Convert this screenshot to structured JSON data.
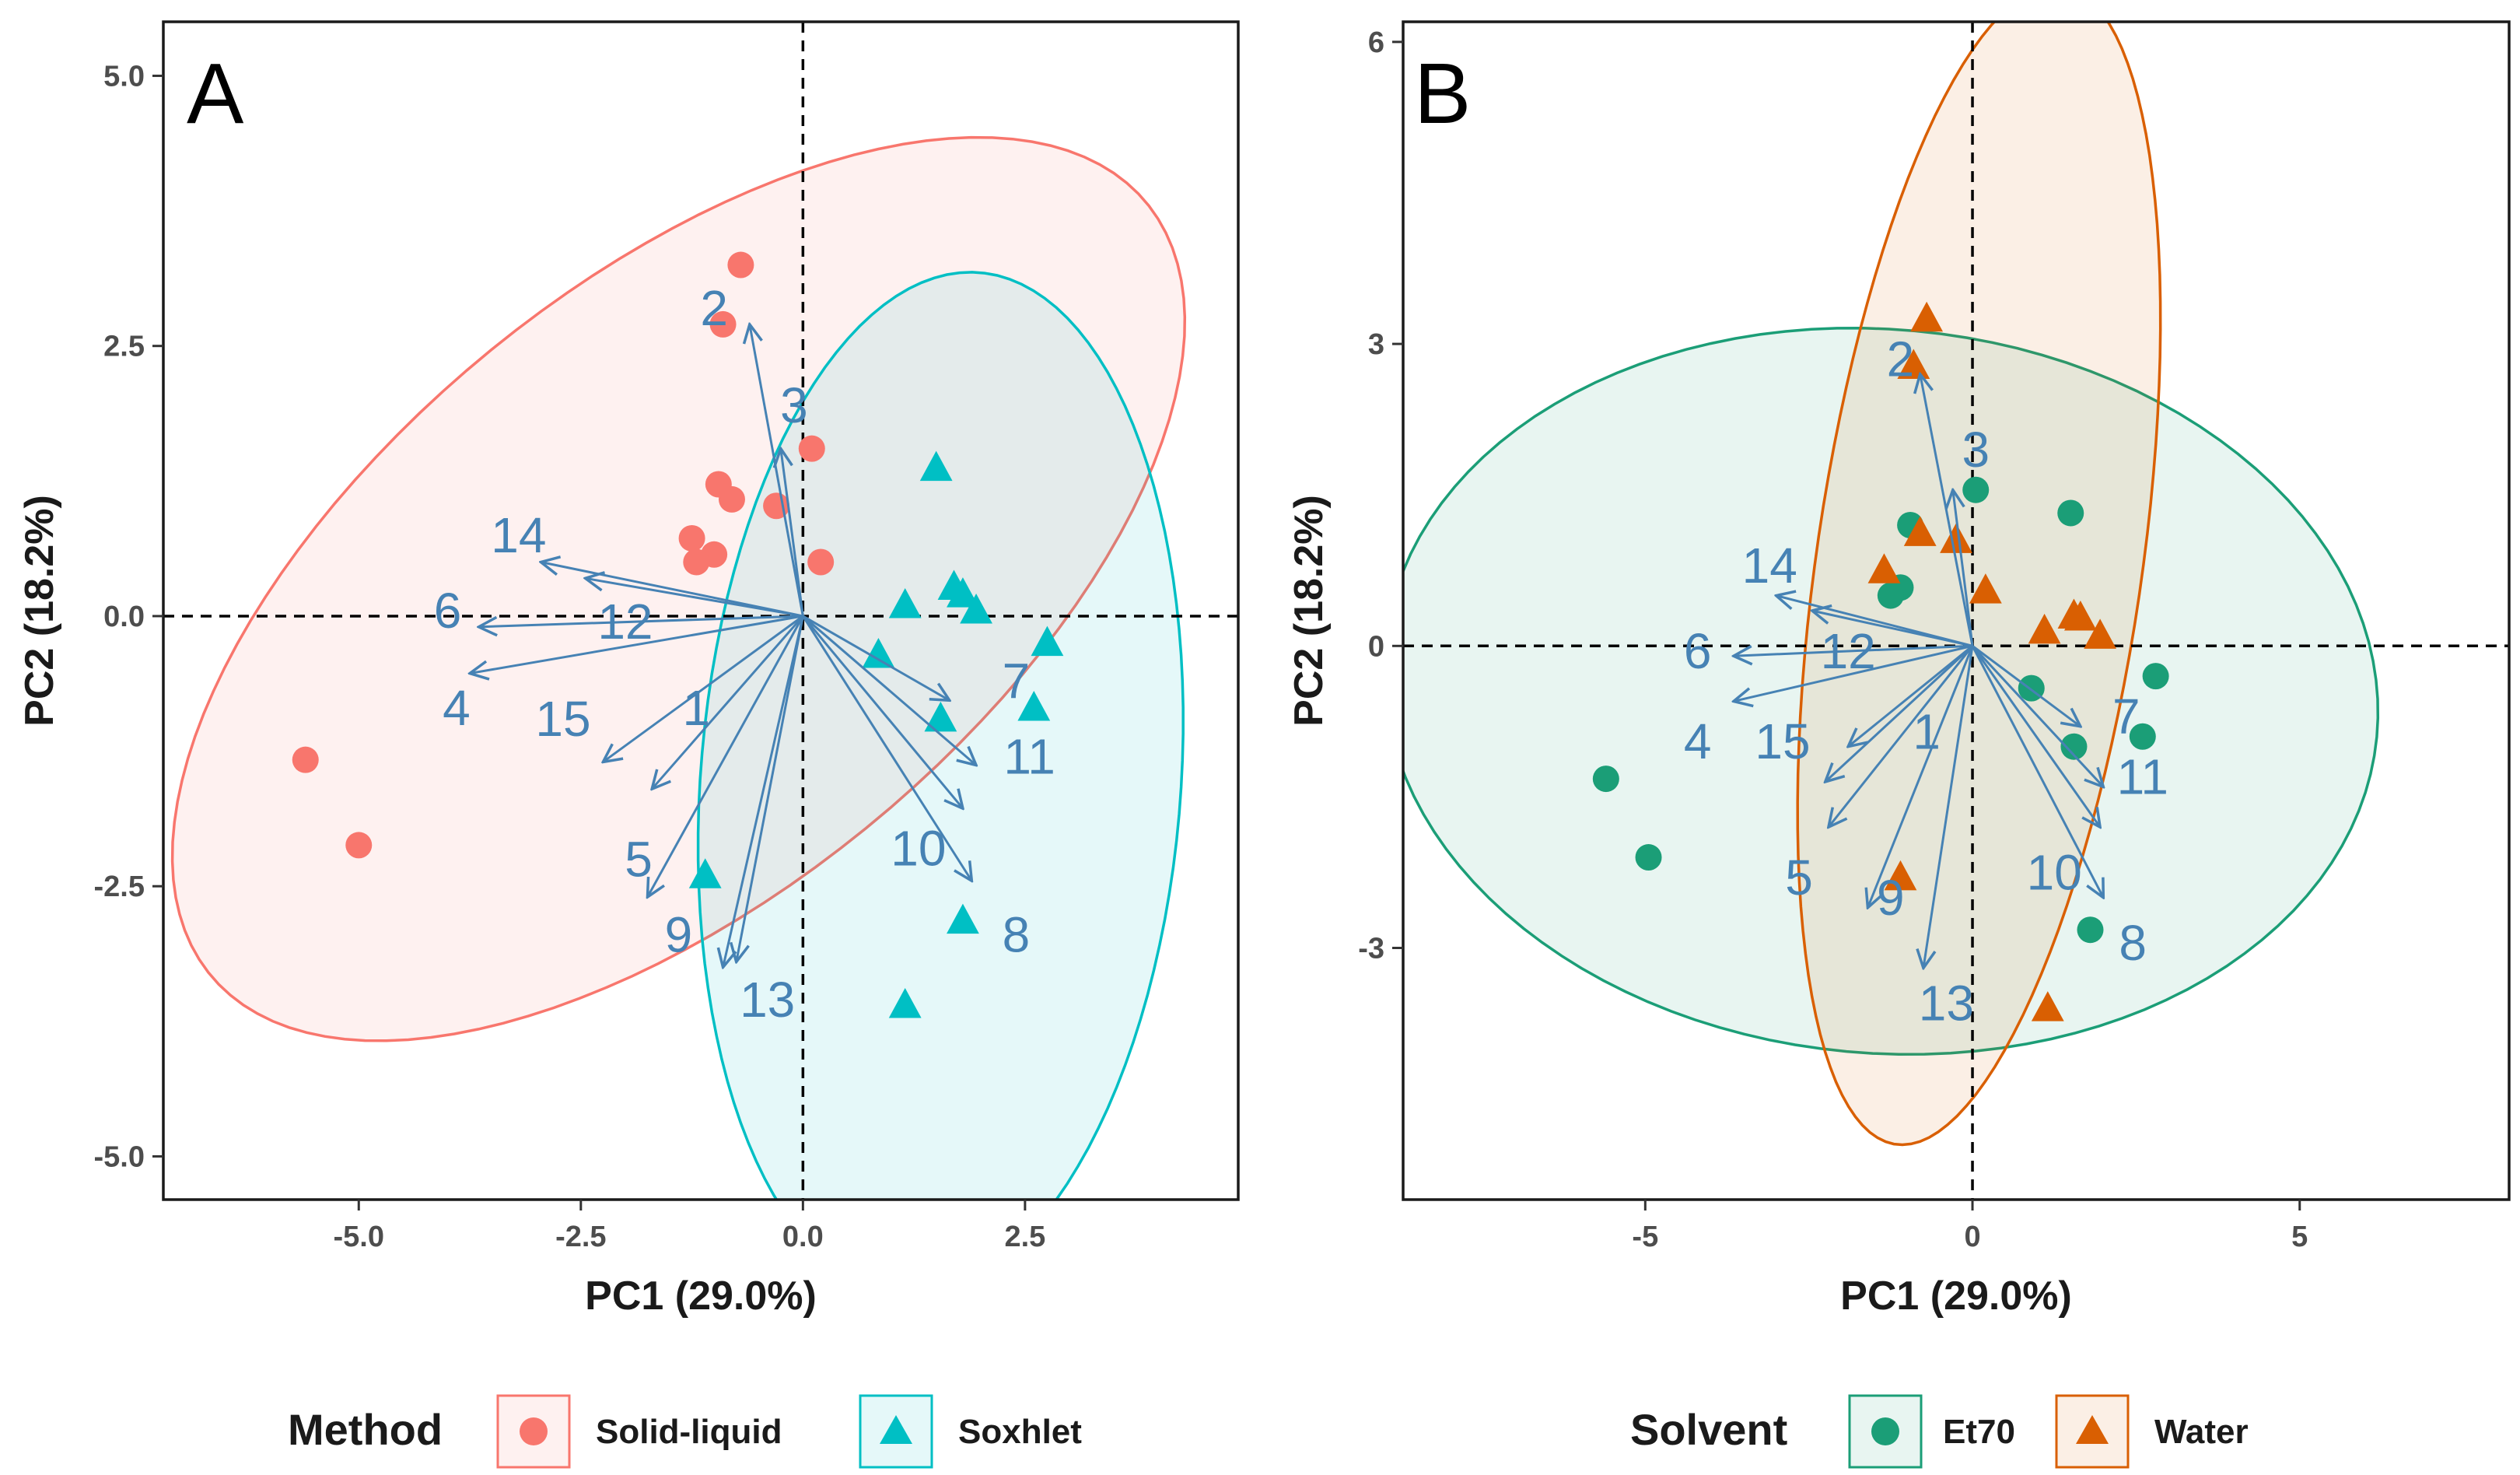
{
  "chart_data": [
    {
      "type": "scatter",
      "subtype": "pca-biplot",
      "panel_label": "A",
      "xlabel": "PC1 (29.0%)",
      "ylabel": "PC2 (18.2%)",
      "xlim": [
        -7.2,
        4.9
      ],
      "ylim": [
        -5.4,
        5.5
      ],
      "x_ticks": [
        -5.0,
        -2.5,
        0.0,
        2.5
      ],
      "x_tick_labels": [
        "-5.0",
        "-2.5",
        "0.0",
        "2.5"
      ],
      "y_ticks": [
        -5.0,
        -2.5,
        0.0,
        2.5,
        5.0
      ],
      "y_tick_labels": [
        "-5.0",
        "-2.5",
        "0.0",
        "2.5",
        "5.0"
      ],
      "reference_lines": {
        "x": 0,
        "y": 0,
        "style": "dashed"
      },
      "legend": {
        "title": "Method",
        "position": "bottom",
        "entries": [
          {
            "label": "Solid-liquid",
            "shape": "circle",
            "color": "#F8766D"
          },
          {
            "label": "Soxhlet",
            "shape": "triangle",
            "color": "#00BFC4"
          }
        ]
      },
      "series": [
        {
          "name": "Solid-liquid",
          "shape": "circle",
          "color": "#F8766D",
          "points": [
            [
              -0.7,
              3.25
            ],
            [
              -0.9,
              2.7
            ],
            [
              -0.95,
              1.22
            ],
            [
              -0.8,
              1.08
            ],
            [
              -1.25,
              0.72
            ],
            [
              -1.0,
              0.57
            ],
            [
              -1.2,
              0.5
            ],
            [
              -0.3,
              1.02
            ],
            [
              0.1,
              1.55
            ],
            [
              0.2,
              0.5
            ],
            [
              -5.6,
              -1.33
            ],
            [
              -5.0,
              -2.12
            ]
          ],
          "ellipse": {
            "center": [
              -1.4,
              0.25
            ],
            "semi_axes": [
              6.4,
              3.0
            ],
            "angle_deg": 31
          }
        },
        {
          "name": "Soxhlet",
          "shape": "triangle",
          "color": "#00BFC4",
          "points": [
            [
              1.5,
              1.37
            ],
            [
              1.7,
              0.27
            ],
            [
              1.8,
              0.2
            ],
            [
              1.95,
              0.05
            ],
            [
              1.15,
              0.1
            ],
            [
              0.85,
              -0.36
            ],
            [
              2.75,
              -0.25
            ],
            [
              1.55,
              -0.95
            ],
            [
              2.6,
              -0.85
            ],
            [
              -1.1,
              -2.4
            ],
            [
              1.8,
              -2.82
            ],
            [
              1.15,
              -3.6
            ]
          ],
          "ellipse": {
            "center": [
              1.55,
              -1.55
            ],
            "semi_axes": [
              2.7,
              4.75
            ],
            "angle_deg": -6
          }
        }
      ],
      "loadings": {
        "color": "#4682B4",
        "vectors": [
          {
            "label": "1",
            "end": [
              -1.7,
              -1.6
            ],
            "label_pos": [
              -1.2,
              -0.85
            ]
          },
          {
            "label": "2",
            "end": [
              -0.6,
              2.7
            ],
            "label_pos": [
              -1.0,
              2.85
            ]
          },
          {
            "label": "3",
            "end": [
              -0.25,
              1.55
            ],
            "label_pos": [
              -0.1,
              1.95
            ]
          },
          {
            "label": "4",
            "end": [
              -3.75,
              -0.53
            ],
            "label_pos": [
              -3.9,
              -0.85
            ]
          },
          {
            "label": "5",
            "end": [
              -1.75,
              -2.6
            ],
            "label_pos": [
              -1.85,
              -2.25
            ]
          },
          {
            "label": "6",
            "end": [
              -3.65,
              -0.1
            ],
            "label_pos": [
              -4.0,
              0.05
            ]
          },
          {
            "label": "7",
            "end": [
              1.65,
              -0.78
            ],
            "label_pos": [
              2.4,
              -0.6
            ]
          },
          {
            "label": "8",
            "end": [
              1.9,
              -2.45
            ],
            "label_pos": [
              2.4,
              -2.95
            ]
          },
          {
            "label": "9",
            "end": [
              -0.9,
              -3.25
            ],
            "label_pos": [
              -1.4,
              -2.95
            ]
          },
          {
            "label": "10",
            "end": [
              1.8,
              -1.78
            ],
            "label_pos": [
              1.3,
              -2.15
            ]
          },
          {
            "label": "11",
            "end": [
              1.95,
              -1.38
            ],
            "label_pos": [
              2.55,
              -1.3
            ]
          },
          {
            "label": "12",
            "end": [
              -2.45,
              0.35
            ],
            "label_pos": [
              -2.0,
              -0.05
            ]
          },
          {
            "label": "13",
            "end": [
              -0.75,
              -3.2
            ],
            "label_pos": [
              -0.4,
              -3.55
            ]
          },
          {
            "label": "14",
            "end": [
              -2.95,
              0.5
            ],
            "label_pos": [
              -3.2,
              0.75
            ]
          },
          {
            "label": "15",
            "end": [
              -2.25,
              -1.35
            ],
            "label_pos": [
              -2.7,
              -0.95
            ]
          }
        ]
      }
    },
    {
      "type": "scatter",
      "subtype": "pca-biplot",
      "panel_label": "B",
      "xlabel": "PC1 (29.0%)",
      "ylabel": "PC2 (18.2%)",
      "xlim": [
        -8.7,
        8.2
      ],
      "ylim": [
        -5.5,
        6.2
      ],
      "x_ticks": [
        -5,
        0,
        5
      ],
      "x_tick_labels": [
        "-5",
        "0",
        "5"
      ],
      "y_ticks": [
        -3,
        0,
        3,
        6
      ],
      "y_tick_labels": [
        "-3",
        "0",
        "3",
        "6"
      ],
      "reference_lines": {
        "x": 0,
        "y": 0,
        "style": "dashed"
      },
      "legend": {
        "title": "Solvent",
        "position": "bottom",
        "entries": [
          {
            "label": "Et70",
            "shape": "circle",
            "color": "#1B9E77"
          },
          {
            "label": "Water",
            "shape": "triangle",
            "color": "#D95F02"
          }
        ]
      },
      "series": [
        {
          "name": "Et70",
          "shape": "circle",
          "color": "#1B9E77",
          "points": [
            [
              0.05,
              1.55
            ],
            [
              1.5,
              1.32
            ],
            [
              -0.95,
              1.2
            ],
            [
              -1.1,
              0.58
            ],
            [
              -1.25,
              0.5
            ],
            [
              0.9,
              -0.42
            ],
            [
              2.8,
              -0.3
            ],
            [
              1.55,
              -1.0
            ],
            [
              2.6,
              -0.9
            ],
            [
              -5.6,
              -1.32
            ],
            [
              -4.95,
              -2.1
            ],
            [
              1.8,
              -2.82
            ]
          ],
          "ellipse": {
            "center": [
              -1.4,
              -0.45
            ],
            "semi_axes": [
              7.6,
              3.6
            ],
            "angle_deg": -2
          }
        },
        {
          "name": "Water",
          "shape": "triangle",
          "color": "#D95F02",
          "points": [
            [
              -0.7,
              3.25
            ],
            [
              -0.9,
              2.78
            ],
            [
              -0.8,
              1.12
            ],
            [
              -0.25,
              1.05
            ],
            [
              -1.35,
              0.75
            ],
            [
              0.2,
              0.55
            ],
            [
              1.65,
              0.28
            ],
            [
              1.1,
              0.15
            ],
            [
              1.55,
              0.3
            ],
            [
              1.95,
              0.1
            ],
            [
              -1.1,
              -2.3
            ],
            [
              1.15,
              -3.6
            ]
          ],
          "ellipse": {
            "center": [
              0.1,
              0.8
            ],
            "semi_axes": [
              2.45,
              5.9
            ],
            "angle_deg": -14
          }
        }
      ],
      "loadings": {
        "color": "#4682B4",
        "vectors": [
          {
            "label": "1",
            "end": [
              -1.9,
              -1.0
            ],
            "label_pos": [
              -0.7,
              -0.85
            ]
          },
          {
            "label": "2",
            "end": [
              -0.8,
              2.7
            ],
            "label_pos": [
              -1.1,
              2.85
            ]
          },
          {
            "label": "3",
            "end": [
              -0.3,
              1.55
            ],
            "label_pos": [
              0.05,
              1.95
            ]
          },
          {
            "label": "4",
            "end": [
              -3.65,
              -0.55
            ],
            "label_pos": [
              -4.2,
              -0.95
            ]
          },
          {
            "label": "5",
            "end": [
              -2.2,
              -1.8
            ],
            "label_pos": [
              -2.65,
              -2.3
            ]
          },
          {
            "label": "6",
            "end": [
              -3.65,
              -0.1
            ],
            "label_pos": [
              -4.2,
              -0.05
            ]
          },
          {
            "label": "7",
            "end": [
              1.65,
              -0.8
            ],
            "label_pos": [
              2.35,
              -0.7
            ]
          },
          {
            "label": "8",
            "end": [
              2.0,
              -2.5
            ],
            "label_pos": [
              2.45,
              -2.95
            ]
          },
          {
            "label": "9",
            "end": [
              -1.6,
              -2.6
            ],
            "label_pos": [
              -1.25,
              -2.5
            ]
          },
          {
            "label": "10",
            "end": [
              1.95,
              -1.8
            ],
            "label_pos": [
              1.25,
              -2.25
            ]
          },
          {
            "label": "11",
            "end": [
              2.0,
              -1.4
            ],
            "label_pos": [
              2.6,
              -1.3
            ]
          },
          {
            "label": "12",
            "end": [
              -2.45,
              0.35
            ],
            "label_pos": [
              -1.9,
              -0.05
            ]
          },
          {
            "label": "13",
            "end": [
              -0.75,
              -3.2
            ],
            "label_pos": [
              -0.4,
              -3.55
            ]
          },
          {
            "label": "14",
            "end": [
              -3.0,
              0.5
            ],
            "label_pos": [
              -3.1,
              0.8
            ]
          },
          {
            "label": "15",
            "end": [
              -2.25,
              -1.35
            ],
            "label_pos": [
              -2.9,
              -0.95
            ]
          }
        ]
      }
    }
  ]
}
